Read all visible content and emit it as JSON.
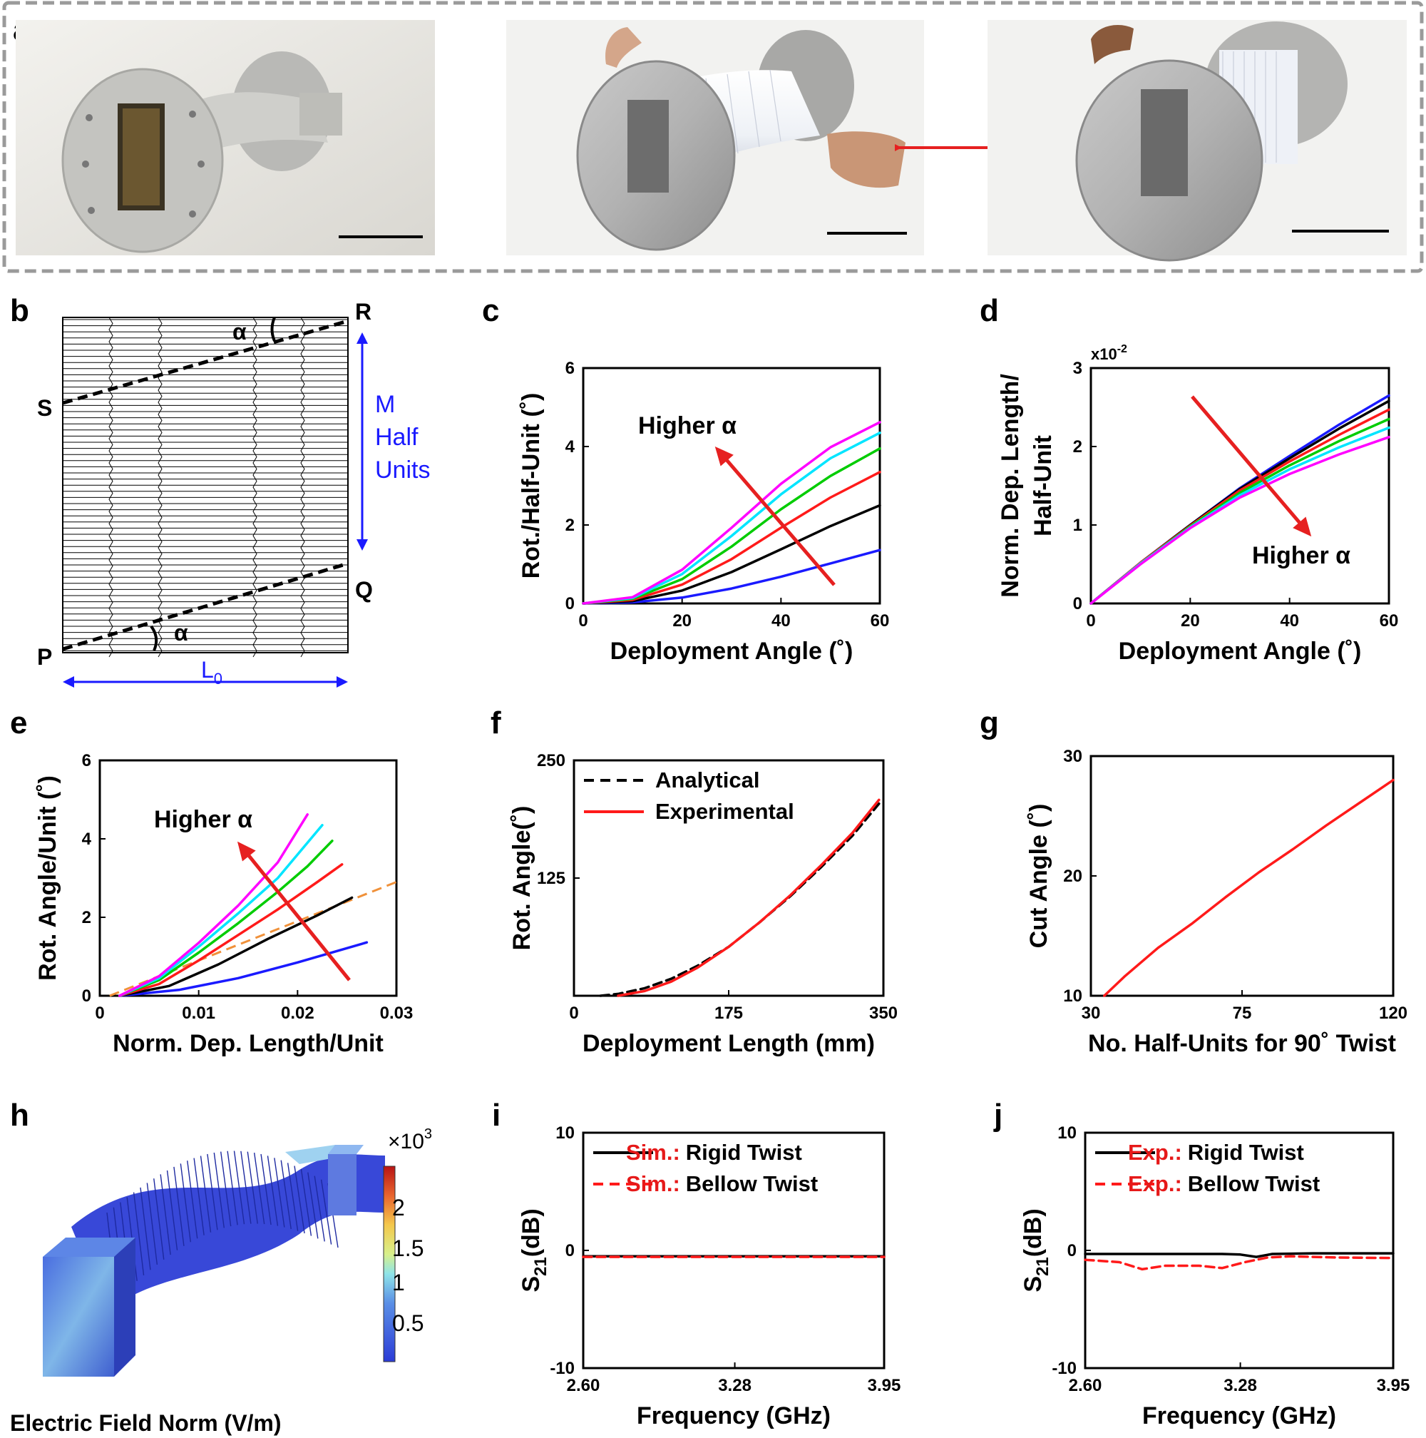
{
  "panel_letters": {
    "a": "a",
    "b": "b",
    "c": "c",
    "d": "d",
    "e": "e",
    "f": "f",
    "g": "g",
    "h": "h",
    "i": "i",
    "j": "j"
  },
  "panel_b": {
    "labels": {
      "R": "R",
      "S": "S",
      "Q": "Q",
      "P": "P",
      "alpha_top": "α",
      "alpha_bottom": "α"
    },
    "side_label": [
      "M",
      "Half",
      "Units"
    ],
    "length_label": "L",
    "length_sub": "0",
    "colors": {
      "annotation": "#1a1aff"
    }
  },
  "series_colors": [
    "#1a1aff",
    "#000000",
    "#ff1a1a",
    "#00cc00",
    "#00e5ff",
    "#ff00ff"
  ],
  "chart_data": [
    {
      "id": "c",
      "type": "line",
      "xlabel": "Deployment Angle (˚)",
      "ylabel": "Rot./Half-Unit (˚)",
      "xlim": [
        0,
        60
      ],
      "ylim": [
        0,
        6
      ],
      "xticks": [
        "0",
        "20",
        "40",
        "60"
      ],
      "yticks": [
        "0",
        "2",
        "4",
        "6"
      ],
      "annotation": "Higher α",
      "x": [
        0,
        10,
        20,
        30,
        40,
        50,
        60
      ],
      "series": [
        {
          "values": [
            0,
            0.03,
            0.15,
            0.38,
            0.68,
            1.02,
            1.36
          ]
        },
        {
          "values": [
            0,
            0.06,
            0.33,
            0.8,
            1.38,
            1.97,
            2.5
          ]
        },
        {
          "values": [
            0,
            0.09,
            0.48,
            1.13,
            1.93,
            2.7,
            3.35
          ]
        },
        {
          "values": [
            0,
            0.12,
            0.62,
            1.45,
            2.4,
            3.25,
            3.95
          ]
        },
        {
          "values": [
            0,
            0.14,
            0.75,
            1.72,
            2.78,
            3.7,
            4.35
          ]
        },
        {
          "values": [
            0,
            0.16,
            0.86,
            1.93,
            3.05,
            3.98,
            4.62
          ]
        }
      ]
    },
    {
      "id": "d",
      "type": "line",
      "xlabel": "Deployment Angle (˚)",
      "ylabel": [
        "Norm. Dep. Length/",
        "Half-Unit"
      ],
      "xlim": [
        0,
        60
      ],
      "ylim": [
        0,
        3
      ],
      "xticks": [
        "0",
        "20",
        "40",
        "60"
      ],
      "yticks": [
        "0",
        "1",
        "2",
        "3"
      ],
      "y_multiplier": "x10",
      "y_multiplier_exp": "-2",
      "annotation": "Higher α",
      "x": [
        0,
        10,
        20,
        30,
        40,
        50,
        60
      ],
      "series": [
        {
          "values": [
            0,
            0.52,
            1.0,
            1.47,
            1.88,
            2.28,
            2.65
          ]
        },
        {
          "values": [
            0,
            0.52,
            1.0,
            1.46,
            1.85,
            2.23,
            2.58
          ]
        },
        {
          "values": [
            0,
            0.52,
            0.99,
            1.44,
            1.81,
            2.15,
            2.47
          ]
        },
        {
          "values": [
            0,
            0.51,
            0.98,
            1.41,
            1.76,
            2.07,
            2.35
          ]
        },
        {
          "values": [
            0,
            0.51,
            0.97,
            1.38,
            1.71,
            1.99,
            2.24
          ]
        },
        {
          "values": [
            0,
            0.5,
            0.96,
            1.35,
            1.65,
            1.9,
            2.12
          ]
        }
      ]
    },
    {
      "id": "e",
      "type": "line",
      "xlabel": "Norm. Dep. Length/Unit",
      "ylabel": "Rot. Angle/Unit (˚)",
      "xlim": [
        0,
        0.03
      ],
      "ylim": [
        0,
        6
      ],
      "xticks": [
        "0",
        "0.01",
        "0.02",
        "0.03"
      ],
      "yticks": [
        "0",
        "2",
        "4",
        "6"
      ],
      "annotation": "Higher α",
      "series": [
        {
          "x": [
            0.002,
            0.008,
            0.014,
            0.02,
            0.027
          ],
          "values": [
            0,
            0.15,
            0.45,
            0.85,
            1.36
          ]
        },
        {
          "x": [
            0.002,
            0.007,
            0.012,
            0.017,
            0.022,
            0.0255
          ],
          "values": [
            0,
            0.25,
            0.8,
            1.45,
            2.05,
            2.5
          ]
        },
        {
          "x": [
            0.002,
            0.006,
            0.01,
            0.014,
            0.018,
            0.022,
            0.0245
          ],
          "values": [
            0,
            0.3,
            0.9,
            1.55,
            2.2,
            2.9,
            3.35
          ]
        },
        {
          "x": [
            0.002,
            0.006,
            0.01,
            0.014,
            0.018,
            0.021,
            0.0235
          ],
          "values": [
            0,
            0.4,
            1.1,
            1.85,
            2.65,
            3.3,
            3.95
          ]
        },
        {
          "x": [
            0.002,
            0.006,
            0.01,
            0.014,
            0.018,
            0.0225
          ],
          "values": [
            0,
            0.45,
            1.25,
            2.1,
            3.0,
            4.35
          ]
        },
        {
          "x": [
            0.002,
            0.006,
            0.01,
            0.014,
            0.018,
            0.021
          ],
          "values": [
            0,
            0.5,
            1.35,
            2.3,
            3.4,
            4.62
          ]
        }
      ],
      "reference_line": {
        "x": [
          0.001,
          0.03
        ],
        "values": [
          0,
          2.9
        ],
        "color": "#f0913a"
      }
    },
    {
      "id": "f",
      "type": "line",
      "xlabel": "Deployment Length (mm)",
      "ylabel": "Rot. Angle(˚)",
      "xlim": [
        0,
        350
      ],
      "ylim": [
        0,
        250
      ],
      "xticks": [
        "0",
        "175",
        "350"
      ],
      "yticks": [
        "125",
        "250"
      ],
      "series": [
        {
          "name": "Analytical",
          "style": "dashed",
          "color": "#000000",
          "x": [
            30,
            50,
            80,
            110,
            140,
            175,
            210,
            245,
            280,
            315,
            345
          ],
          "values": [
            0,
            2,
            8,
            18,
            32,
            52,
            78,
            106,
            137,
            170,
            204
          ]
        },
        {
          "name": "Experimental",
          "style": "solid",
          "color": "#ff1a1a",
          "x": [
            50,
            80,
            110,
            140,
            175,
            210,
            245,
            280,
            315,
            345
          ],
          "values": [
            0,
            5,
            15,
            30,
            52,
            78,
            107,
            139,
            173,
            208
          ]
        }
      ]
    },
    {
      "id": "g",
      "type": "line",
      "xlabel": "No. Half-Units for 90˚ Twist",
      "ylabel": "Cut Angle (˚)",
      "xlim": [
        30,
        120
      ],
      "ylim": [
        10,
        30
      ],
      "xticks": [
        "30",
        "75",
        "120"
      ],
      "yticks": [
        "10",
        "20",
        "30"
      ],
      "series": [
        {
          "color": "#ff1a1a",
          "x": [
            34,
            40,
            50,
            60,
            70,
            80,
            90,
            100,
            110,
            120
          ],
          "values": [
            10,
            11.6,
            14.0,
            16.0,
            18.2,
            20.3,
            22.2,
            24.2,
            26.1,
            28.0
          ]
        }
      ]
    },
    {
      "id": "i",
      "type": "line",
      "xlabel": "Frequency (GHz)",
      "ylabel": "S",
      "ylabel_sub": "21",
      "ylabel_rest": "(dB)",
      "xlim": [
        2.6,
        3.95
      ],
      "ylim": [
        -10,
        10
      ],
      "xticks": [
        "2.60",
        "3.28",
        "3.95"
      ],
      "yticks": [
        "-10",
        "0",
        "10"
      ],
      "series": [
        {
          "name_prefix": "Sim.:",
          "name": "Rigid Twist",
          "style": "solid",
          "color": "#000000",
          "x": [
            2.6,
            3.95
          ],
          "values": [
            -0.5,
            -0.5
          ]
        },
        {
          "name_prefix": "Sim.:",
          "name": "Bellow Twist",
          "style": "dashed",
          "color": "#ff1a1a",
          "x": [
            2.6,
            3.95
          ],
          "values": [
            -0.55,
            -0.55
          ]
        }
      ]
    },
    {
      "id": "j",
      "type": "line",
      "xlabel": "Frequency (GHz)",
      "ylabel": "S",
      "ylabel_sub": "21",
      "ylabel_rest": "(dB)",
      "xlim": [
        2.6,
        3.95
      ],
      "ylim": [
        -10,
        10
      ],
      "xticks": [
        "2.60",
        "3.28",
        "3.95"
      ],
      "yticks": [
        "-10",
        "0",
        "10"
      ],
      "series": [
        {
          "name_prefix": "Exp.:",
          "name": "Rigid Twist",
          "style": "solid",
          "color": "#000000",
          "x": [
            2.6,
            2.9,
            3.2,
            3.28,
            3.35,
            3.42,
            3.6,
            3.95
          ],
          "values": [
            -0.3,
            -0.3,
            -0.3,
            -0.35,
            -0.55,
            -0.3,
            -0.25,
            -0.25
          ]
        },
        {
          "name_prefix": "Exp.:",
          "name": "Bellow Twist",
          "style": "dashed",
          "color": "#ff1a1a",
          "x": [
            2.6,
            2.75,
            2.85,
            2.95,
            3.1,
            3.2,
            3.3,
            3.4,
            3.5,
            3.7,
            3.95
          ],
          "values": [
            -0.8,
            -1.0,
            -1.6,
            -1.3,
            -1.3,
            -1.5,
            -1.0,
            -0.6,
            -0.5,
            -0.6,
            -0.65
          ]
        }
      ]
    }
  ],
  "panel_h": {
    "title": "Electric Field Norm (V/m)",
    "colorbar_multiplier": "×10",
    "colorbar_exp": "3",
    "colorbar_ticks": [
      "2",
      "1.5",
      "1",
      "0.5"
    ]
  }
}
